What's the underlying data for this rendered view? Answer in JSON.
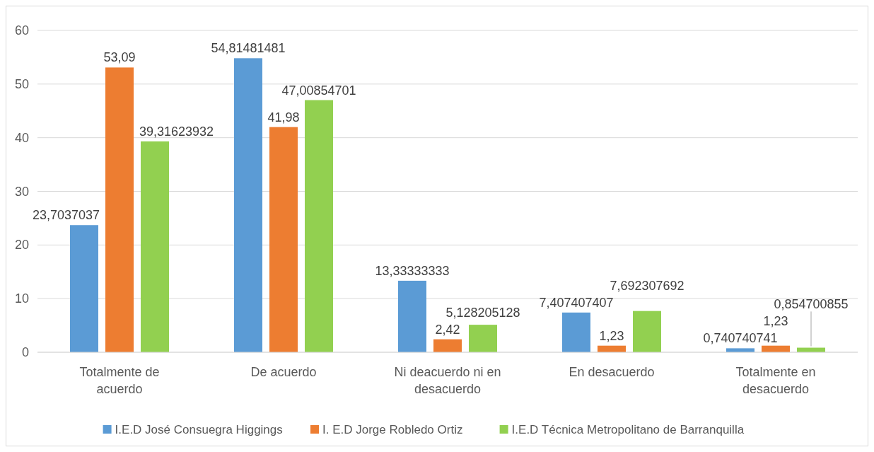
{
  "chart_data": {
    "type": "bar",
    "categories": [
      "Totalmente de acuerdo",
      "De acuerdo",
      "Ni deacuerdo ni en desacuerdo",
      "En desacuerdo",
      "Totalmente en desacuerdo"
    ],
    "series": [
      {
        "name": "I.E.D José Consuegra Higgings",
        "color": "#5b9bd5",
        "values": [
          23.7037037,
          54.81481481,
          13.33333333,
          7.407407407,
          0.740740741
        ],
        "value_labels": [
          "23,7037037",
          "54,81481481",
          "13,33333333",
          "7,407407407",
          "0,740740741"
        ]
      },
      {
        "name": "I. E.D Jorge Robledo Ortiz",
        "color": "#ed7d31",
        "values": [
          53.09,
          41.98,
          2.42,
          1.23,
          1.23
        ],
        "value_labels": [
          "53,09",
          "41,98",
          "2,42",
          "1,23",
          "1,23"
        ]
      },
      {
        "name": "I.E.D Técnica Metropolitano de Barranquilla",
        "color": "#92d050",
        "values": [
          39.31623932,
          47.00854701,
          5.128205128,
          7.692307692,
          0.854700855
        ],
        "value_labels": [
          "39,31623932",
          "47,00854701",
          "5,128205128",
          "7,692307692",
          "0,854700855"
        ]
      }
    ],
    "ylim": [
      0,
      60
    ],
    "yticks": [
      0,
      10,
      20,
      30,
      40,
      50,
      60
    ],
    "grid": "y",
    "legend": "bottom"
  }
}
